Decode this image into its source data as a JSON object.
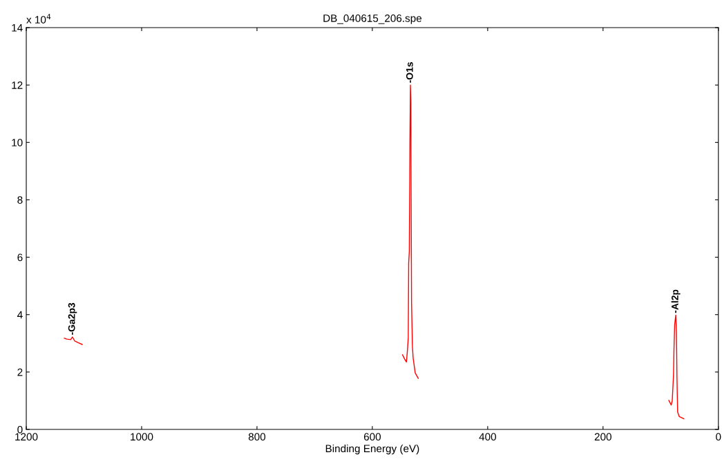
{
  "chart_data": {
    "type": "line",
    "title": "DB_040615_206.spe",
    "xlabel": "Binding Energy (eV)",
    "xlim": [
      1200,
      0
    ],
    "xticks": [
      1200,
      1000,
      800,
      600,
      400,
      200,
      0
    ],
    "ylim": [
      0,
      14
    ],
    "yticks": [
      0,
      2,
      4,
      6,
      8,
      10,
      12,
      14
    ],
    "grid": false,
    "line_style": "solid",
    "series": [
      {
        "color": "#ff0000",
        "x": [
          1134,
          1130,
          1123,
          1120,
          1116,
          1110,
          1103
        ],
        "values": [
          3.18,
          3.15,
          3.13,
          3.22,
          3.08,
          3.02,
          2.96
        ]
      },
      {
        "color": "#ff0000",
        "x": [
          547.7,
          544,
          540.9,
          539,
          537.7,
          537,
          535.9,
          535.2,
          534.8,
          534,
          533.2,
          532.8,
          532,
          530.5,
          529.3,
          525.7,
          520.4
        ],
        "values": [
          2.6,
          2.45,
          2.35,
          2.79,
          3.2,
          5.8,
          6.2,
          8.5,
          10.1,
          12.0,
          11.45,
          8.5,
          4.4,
          2.9,
          2.5,
          1.97,
          1.78
        ]
      },
      {
        "color": "#ff0000",
        "x": [
          85.9,
          81.8,
          80,
          77.8,
          77,
          75.8,
          73.9,
          72.7,
          71.9,
          70.7,
          67.9,
          59.9
        ],
        "values": [
          1.01,
          0.85,
          1.0,
          1.9,
          2.8,
          3.65,
          3.98,
          3.4,
          1.9,
          0.61,
          0.45,
          0.37
        ]
      }
    ],
    "annotations": [
      {
        "text": "-Ga2p3",
        "x": 1120,
        "y": 3.22
      },
      {
        "text": "-O1s",
        "x": 534,
        "y": 12.0
      },
      {
        "text": "-Al2p",
        "x": 73.9,
        "y": 3.98
      },
      "x 10$^{4}$"
    ]
  }
}
